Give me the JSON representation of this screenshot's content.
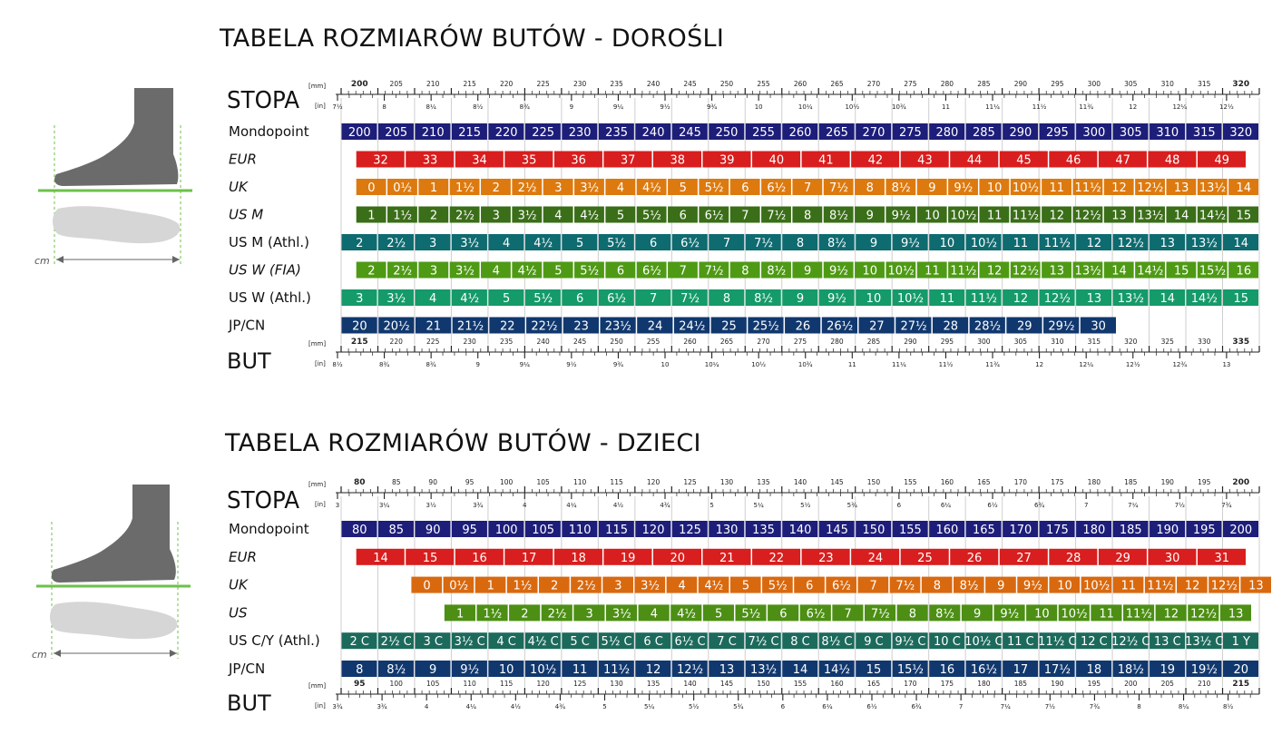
{
  "colors": {
    "mondopoint": "#1d1d7a",
    "eur": "#d81e1e",
    "uk": "#dd7a0f",
    "us_m": "#3a6e18",
    "us_m_athl": "#0e6b70",
    "us_w_fia": "#4f9a15",
    "us_w_athl": "#159a6a",
    "jp_cn": "#11386e",
    "kids_uk": "#d9690f",
    "kids_us": "#4c8f14",
    "kids_us_cy": "#1c6a5c",
    "foot": "#6b6b6b",
    "sole": "#d6d6d6",
    "ground": "#6cc04a",
    "guide": "#6cc04a"
  },
  "icons": {
    "foot_side": "foot-side-icon",
    "foot_sole": "foot-sole-icon",
    "arrow": "measure-arrow-icon"
  },
  "foot_label": "cm",
  "charts": [
    {
      "title": "TABELA ROZMIARÓW BUTÓW - DOROŚLI",
      "foot_label": "STOPA",
      "shoe_label": "BUT",
      "mm_unit": "[mm]",
      "in_unit": "[in]",
      "foot_scale": {
        "mm_range": [
          200,
          320
        ],
        "mm_ticks": [
          "200",
          "205",
          "210",
          "215",
          "220",
          "225",
          "230",
          "235",
          "240",
          "245",
          "250",
          "255",
          "260",
          "265",
          "270",
          "275",
          "280",
          "285",
          "290",
          "295",
          "300",
          "305",
          "310",
          "315",
          "320"
        ],
        "in_ticks": [
          "7½",
          "8",
          "8¼",
          "8½",
          "8¾",
          "9",
          "9¼",
          "9½",
          "9¾",
          "10",
          "10¼",
          "10½",
          "10¾",
          "11",
          "11¼",
          "11½",
          "11¾",
          "12",
          "12¼",
          "12½"
        ]
      },
      "shoe_scale": {
        "mm_range": [
          215,
          335
        ],
        "mm_ticks": [
          "215",
          "220",
          "225",
          "230",
          "235",
          "240",
          "245",
          "250",
          "255",
          "260",
          "265",
          "270",
          "275",
          "280",
          "285",
          "290",
          "295",
          "300",
          "305",
          "310",
          "315",
          "320",
          "325",
          "330",
          "335"
        ],
        "in_ticks": [
          "8½",
          "8¾",
          "8¾",
          "9",
          "9¼",
          "9½",
          "9¾",
          "10",
          "10¼",
          "10½",
          "10¾",
          "11",
          "11¼",
          "11½",
          "11¾",
          "12",
          "12¼",
          "12½",
          "12¾",
          "13"
        ]
      },
      "rows": [
        {
          "label": "Mondopoint",
          "italic": false,
          "color": "mondopoint",
          "start": 0,
          "cells": [
            "200",
            "205",
            "210",
            "215",
            "220",
            "225",
            "230",
            "235",
            "240",
            "245",
            "250",
            "255",
            "260",
            "265",
            "270",
            "275",
            "280",
            "285",
            "290",
            "295",
            "300",
            "305",
            "310",
            "315",
            "320"
          ]
        },
        {
          "label": "EUR",
          "italic": true,
          "color": "eur",
          "start": 0.4,
          "cells": [
            "32",
            "33",
            "34",
            "35",
            "36",
            "37",
            "38",
            "39",
            "40",
            "41",
            "42",
            "43",
            "44",
            "45",
            "46",
            "47",
            "48",
            "49"
          ]
        },
        {
          "label": "UK",
          "italic": true,
          "color": "uk",
          "start": 0.4,
          "cells": [
            "0",
            "0½",
            "1",
            "1½",
            "2",
            "2½",
            "3",
            "3½",
            "4",
            "4½",
            "5",
            "5½",
            "6",
            "6½",
            "7",
            "7½",
            "8",
            "8½",
            "9",
            "9½",
            "10",
            "10½",
            "11",
            "11½",
            "12",
            "12½",
            "13",
            "13½",
            "14"
          ]
        },
        {
          "label": "US M",
          "italic": true,
          "color": "us_m",
          "start": 0.4,
          "cells": [
            "1",
            "1½",
            "2",
            "2½",
            "3",
            "3½",
            "4",
            "4½",
            "5",
            "5½",
            "6",
            "6½",
            "7",
            "7½",
            "8",
            "8½",
            "9",
            "9½",
            "10",
            "10½",
            "11",
            "11½",
            "12",
            "12½",
            "13",
            "13½",
            "14",
            "14½",
            "15"
          ]
        },
        {
          "label": "US M (Athl.)",
          "italic": false,
          "color": "us_m_athl",
          "start": 0,
          "cells": [
            "2",
            "2½",
            "3",
            "3½",
            "4",
            "4½",
            "5",
            "5½",
            "6",
            "6½",
            "7",
            "7½",
            "8",
            "8½",
            "9",
            "9½",
            "10",
            "10½",
            "11",
            "11½",
            "12",
            "12½",
            "13",
            "13½",
            "14"
          ]
        },
        {
          "label": "US W (FIA)",
          "italic": true,
          "color": "us_w_fia",
          "start": 0.4,
          "cells": [
            "2",
            "2½",
            "3",
            "3½",
            "4",
            "4½",
            "5",
            "5½",
            "6",
            "6½",
            "7",
            "7½",
            "8",
            "8½",
            "9",
            "9½",
            "10",
            "10½",
            "11",
            "11½",
            "12",
            "12½",
            "13",
            "13½",
            "14",
            "14½",
            "15",
            "15½",
            "16"
          ]
        },
        {
          "label": "US W (Athl.)",
          "italic": false,
          "color": "us_w_athl",
          "start": 0,
          "cells": [
            "3",
            "3½",
            "4",
            "4½",
            "5",
            "5½",
            "6",
            "6½",
            "7",
            "7½",
            "8",
            "8½",
            "9",
            "9½",
            "10",
            "10½",
            "11",
            "11½",
            "12",
            "12½",
            "13",
            "13½",
            "14",
            "14½",
            "15"
          ]
        },
        {
          "label": "JP/CN",
          "italic": false,
          "color": "jp_cn",
          "start": 0,
          "cells": [
            "20",
            "20½",
            "21",
            "21½",
            "22",
            "22½",
            "23",
            "23½",
            "24",
            "24½",
            "25",
            "25½",
            "26",
            "26½",
            "27",
            "27½",
            "28",
            "28½",
            "29",
            "29½",
            "30"
          ]
        }
      ]
    },
    {
      "title": "TABELA ROZMIARÓW BUTÓW - DZIECI",
      "foot_label": "STOPA",
      "shoe_label": "BUT",
      "mm_unit": "[mm]",
      "in_unit": "[in]",
      "foot_scale": {
        "mm_range": [
          80,
          200
        ],
        "mm_ticks": [
          "80",
          "85",
          "90",
          "95",
          "100",
          "105",
          "110",
          "115",
          "120",
          "125",
          "130",
          "135",
          "140",
          "145",
          "150",
          "155",
          "160",
          "165",
          "170",
          "175",
          "180",
          "185",
          "190",
          "195",
          "200"
        ],
        "in_ticks": [
          "3",
          "3¼",
          "3½",
          "3¾",
          "4",
          "4¼",
          "4½",
          "4¾",
          "5",
          "5¼",
          "5½",
          "5¾",
          "6",
          "6¼",
          "6½",
          "6¾",
          "7",
          "7¼",
          "7½",
          "7¾"
        ]
      },
      "shoe_scale": {
        "mm_range": [
          95,
          215
        ],
        "mm_ticks": [
          "95",
          "100",
          "105",
          "110",
          "115",
          "120",
          "125",
          "130",
          "135",
          "140",
          "145",
          "150",
          "155",
          "160",
          "165",
          "170",
          "175",
          "180",
          "185",
          "190",
          "195",
          "200",
          "205",
          "210",
          "215"
        ],
        "in_ticks": [
          "3¾",
          "3¾",
          "4",
          "4¼",
          "4½",
          "4¾",
          "5",
          "5¼",
          "5½",
          "5¾",
          "6",
          "6¼",
          "6½",
          "6¾",
          "7",
          "7¼",
          "7½",
          "7¾",
          "8",
          "8¼",
          "8½"
        ]
      },
      "rows": [
        {
          "label": "Mondopoint",
          "italic": false,
          "color": "mondopoint",
          "start": 0,
          "cells": [
            "80",
            "85",
            "90",
            "95",
            "100",
            "105",
            "110",
            "115",
            "120",
            "125",
            "130",
            "135",
            "140",
            "145",
            "150",
            "155",
            "160",
            "165",
            "170",
            "175",
            "180",
            "185",
            "190",
            "195",
            "200"
          ]
        },
        {
          "label": "EUR",
          "italic": true,
          "color": "eur",
          "start": 0.4,
          "cells": [
            "14",
            "15",
            "16",
            "17",
            "18",
            "19",
            "20",
            "21",
            "22",
            "23",
            "24",
            "25",
            "26",
            "27",
            "28",
            "29",
            "30",
            "31"
          ]
        },
        {
          "label": "UK",
          "italic": true,
          "color": "kids_uk",
          "start": 1.9,
          "cells": [
            "0",
            "0½",
            "1",
            "1½",
            "2",
            "2½",
            "3",
            "3½",
            "4",
            "4½",
            "5",
            "5½",
            "6",
            "6½",
            "7",
            "7½",
            "8",
            "8½",
            "9",
            "9½",
            "10",
            "10½",
            "11",
            "11½",
            "12",
            "12½",
            "13"
          ]
        },
        {
          "label": "US",
          "italic": true,
          "color": "kids_us",
          "start": 2.8,
          "cells": [
            "1",
            "1½",
            "2",
            "2½",
            "3",
            "3½",
            "4",
            "4½",
            "5",
            "5½",
            "6",
            "6½",
            "7",
            "7½",
            "8",
            "8½",
            "9",
            "9½",
            "10",
            "10½",
            "11",
            "11½",
            "12",
            "12½",
            "13"
          ]
        },
        {
          "label": "US C/Y (Athl.)",
          "italic": false,
          "color": "kids_us_cy",
          "start": 0,
          "cells": [
            "2 C",
            "2½ C",
            "3 C",
            "3½ C",
            "4 C",
            "4½ C",
            "5 C",
            "5½ C",
            "6 C",
            "6½ C",
            "7 C",
            "7½ C",
            "8 C",
            "8½ C",
            "9 C",
            "9½ C",
            "10 C",
            "10½ C",
            "11 C",
            "11½ C",
            "12 C",
            "12½ C",
            "13 C",
            "13½ C",
            "1 Y"
          ]
        },
        {
          "label": "JP/CN",
          "italic": false,
          "color": "jp_cn",
          "start": 0,
          "cells": [
            "8",
            "8½",
            "9",
            "9½",
            "10",
            "10½",
            "11",
            "11½",
            "12",
            "12½",
            "13",
            "13½",
            "14",
            "14½",
            "15",
            "15½",
            "16",
            "16½",
            "17",
            "17½",
            "18",
            "18½",
            "19",
            "19½",
            "20"
          ]
        }
      ]
    }
  ],
  "chart_data": [
    {
      "type": "table",
      "title": "TABELA ROZMIARÓW BUTÓW - DOROŚLI",
      "columns": [
        "Mondopoint",
        "EUR",
        "UK",
        "US M",
        "US M (Athl.)",
        "US W (FIA)",
        "US W (Athl.)",
        "JP/CN"
      ],
      "foot_mm_range": [
        200,
        320
      ],
      "shoe_mm_range": [
        215,
        335
      ]
    },
    {
      "type": "table",
      "title": "TABELA ROZMIARÓW BUTÓW - DZIECI",
      "columns": [
        "Mondopoint",
        "EUR",
        "UK",
        "US",
        "US C/Y (Athl.)",
        "JP/CN"
      ],
      "foot_mm_range": [
        80,
        200
      ],
      "shoe_mm_range": [
        95,
        215
      ]
    }
  ]
}
